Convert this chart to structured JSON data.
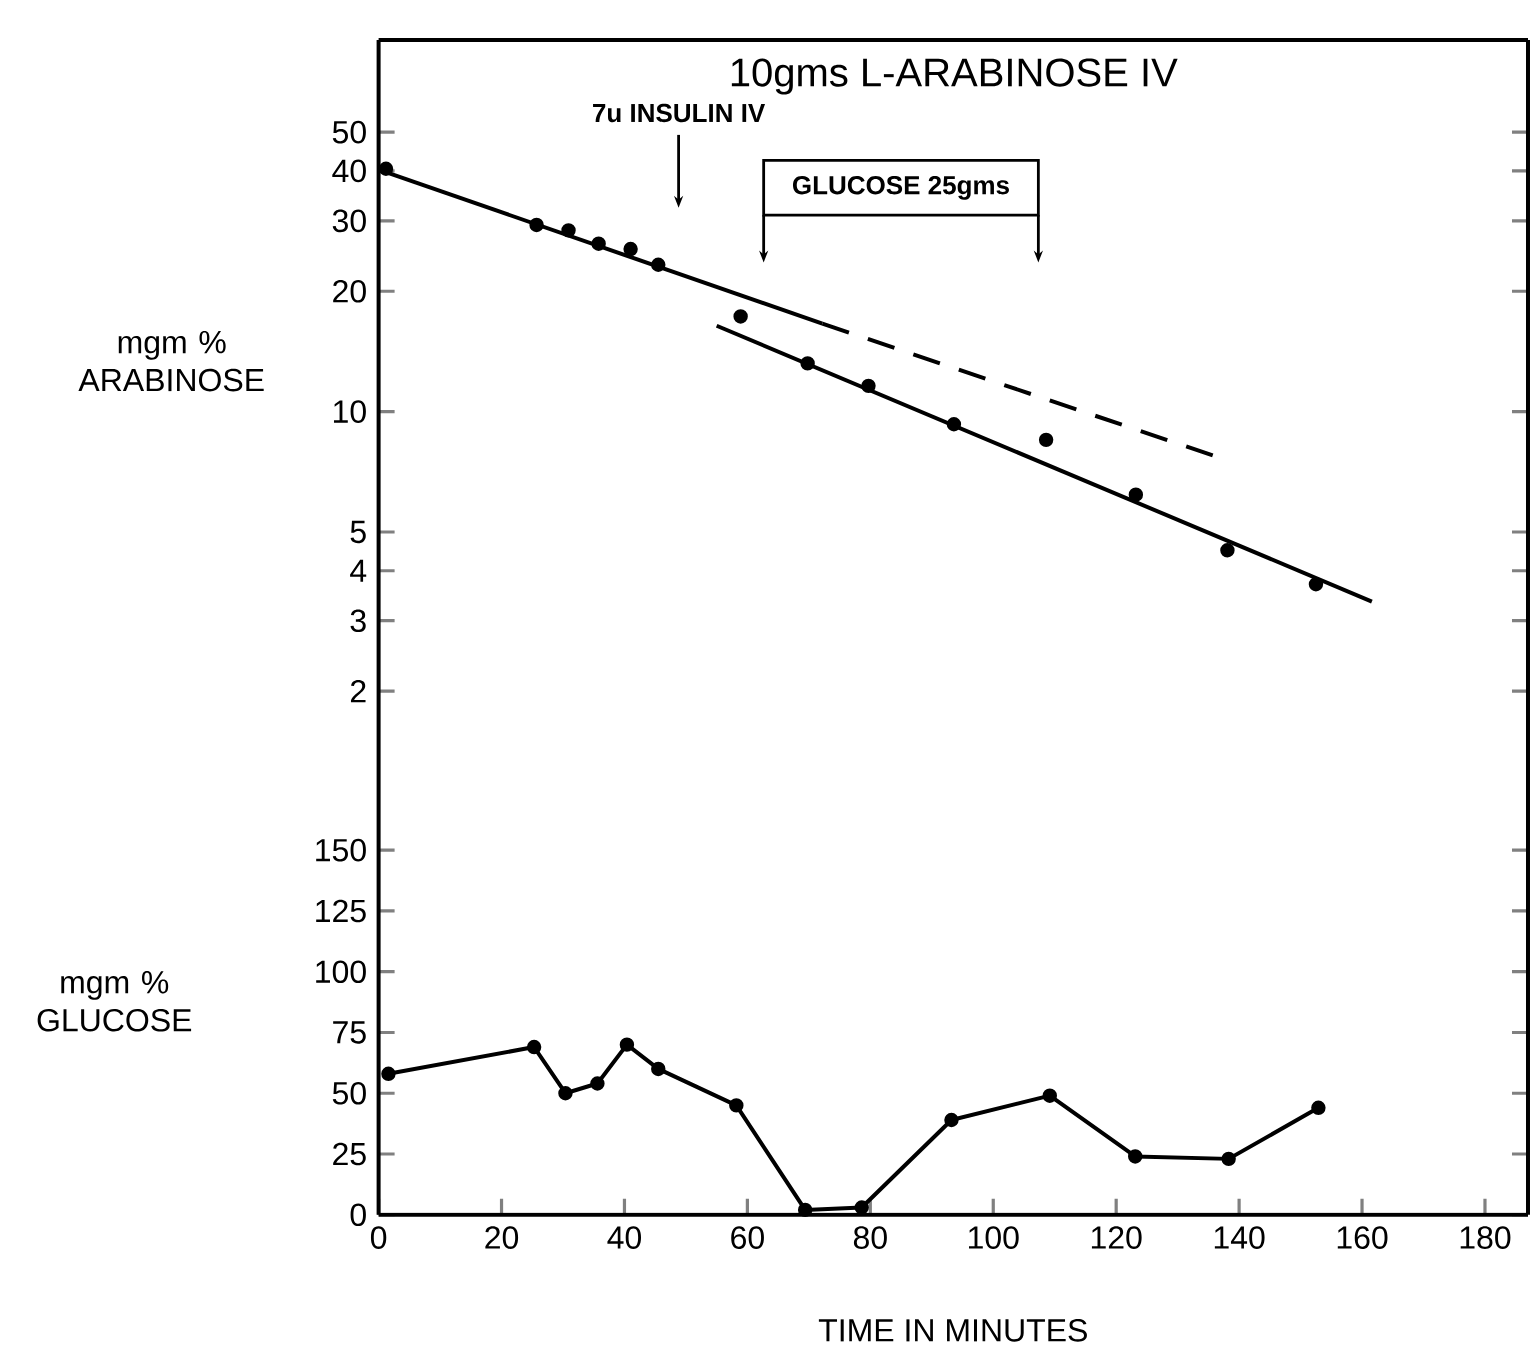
{
  "chart_data": [
    {
      "type": "scatter",
      "title": "10gms L-ARABINOSE IV",
      "ylabel": "mgm % ARABINOSE",
      "log": "y",
      "xlim": [
        0,
        187
      ],
      "ylim": [
        1.27,
        85
      ],
      "yticks": [
        2,
        3,
        4,
        5,
        10,
        20,
        30,
        40,
        50
      ],
      "tick_labels": "y",
      "marker": "circle",
      "series": [
        {
          "color": "#000000",
          "x": [
            1.2,
            25.7,
            30.9,
            35.8,
            41.0,
            45.5,
            58.9,
            69.8,
            79.7,
            93.6,
            108.6,
            123.2,
            138.1,
            152.5
          ],
          "values": [
            40.5,
            29.3,
            28.4,
            26.3,
            25.5,
            23.3,
            17.3,
            13.2,
            11.6,
            9.3,
            8.5,
            6.2,
            4.5,
            3.7
          ]
        },
        {
          "type": "line",
          "marker": "none",
          "line_style": "solid",
          "color": "#000000",
          "x": [
            0,
            72.2
          ],
          "values": [
            40.3,
            16.6
          ]
        },
        {
          "type": "line",
          "marker": "none",
          "line_style": "dashed",
          "color": "#000000",
          "x": [
            72.2,
            136.5
          ],
          "values": [
            16.6,
            7.7
          ]
        },
        {
          "type": "line",
          "marker": "none",
          "line_style": "solid",
          "color": "#000000",
          "x": [
            55,
            161.6
          ],
          "values": [
            16.4,
            3.35
          ]
        }
      ],
      "annotations": [
        "7u INSULIN IV",
        "GLUCOSE 25gms"
      ]
    },
    {
      "type": "line",
      "ylabel": "mgm % GLUCOSE",
      "xlabel": "TIME IN MINUTES",
      "xlim": [
        0,
        187
      ],
      "ylim": [
        0,
        183
      ],
      "xticks": [
        0,
        20,
        40,
        60,
        80,
        100,
        120,
        140,
        160,
        180
      ],
      "yticks": [
        0,
        25,
        50,
        75,
        100,
        125,
        150
      ],
      "marker": "circle",
      "line_style": "solid",
      "series": [
        {
          "color": "#000000",
          "x": [
            1.6,
            25.3,
            30.4,
            35.6,
            40.4,
            45.5,
            58.2,
            69.4,
            78.6,
            93.2,
            109.2,
            123.1,
            138.3,
            152.9
          ],
          "values": [
            58,
            69,
            50,
            54,
            70,
            60,
            45,
            2,
            3,
            39,
            49,
            24,
            23,
            44
          ]
        }
      ]
    }
  ]
}
